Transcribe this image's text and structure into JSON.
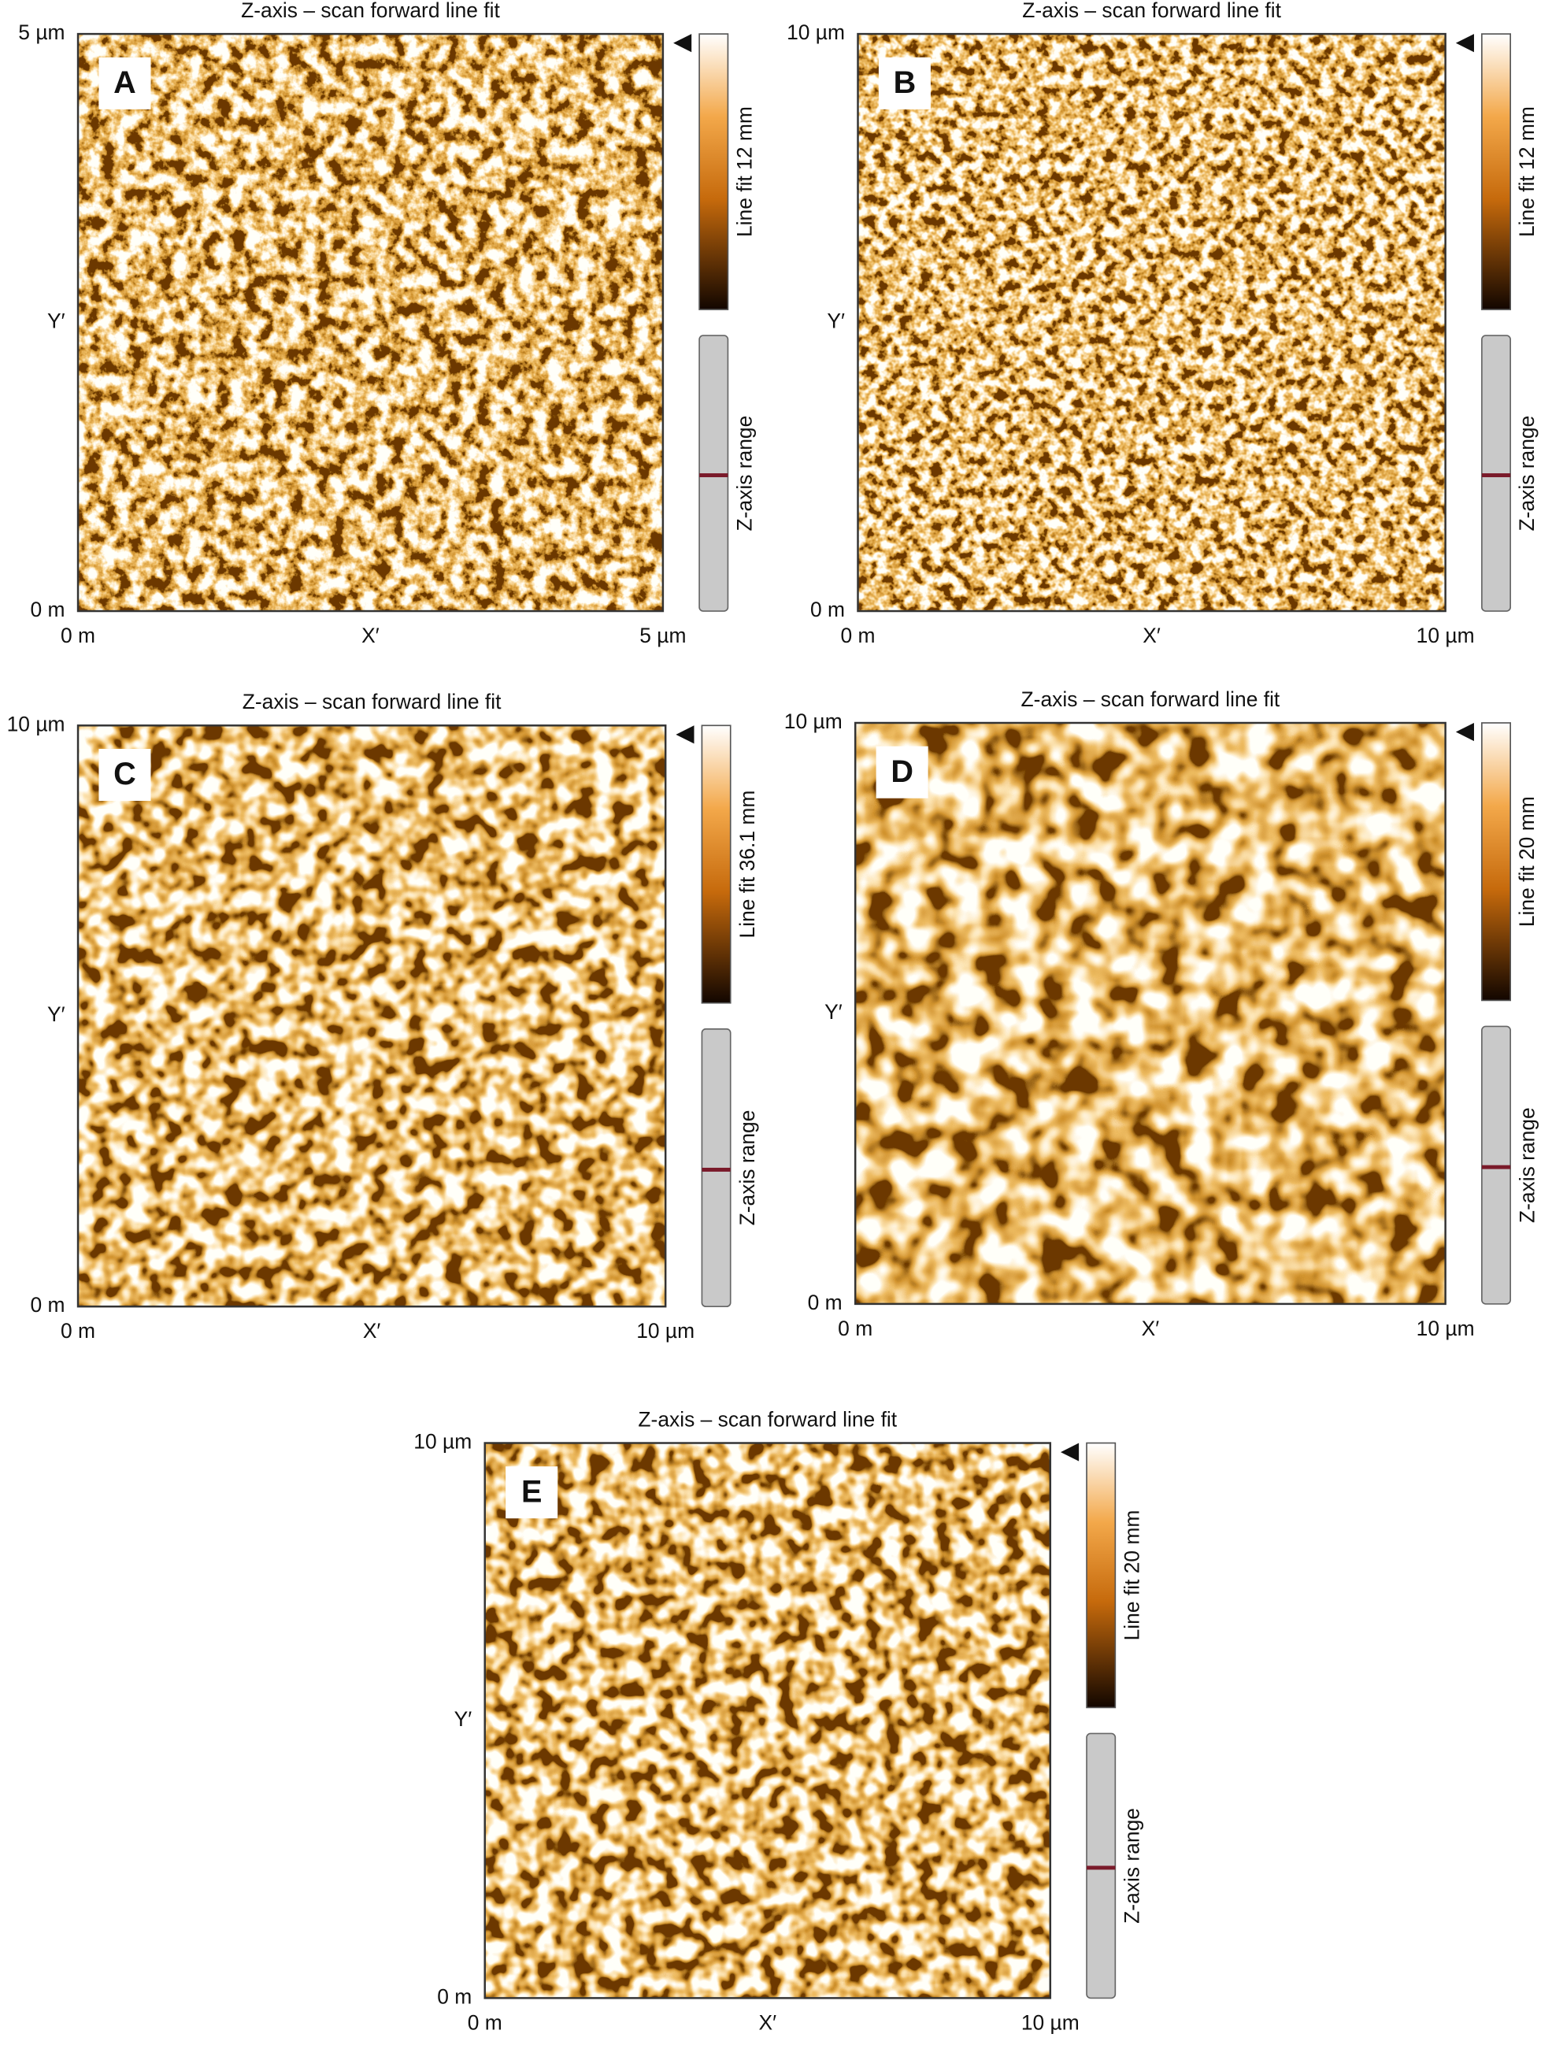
{
  "panels": [
    {
      "label": "A",
      "title": "Z-axis – scan forward line fit",
      "y_top": "5 µm",
      "y_mid": "Y′",
      "y_bottom": "0 m",
      "x_left": "0 m",
      "x_mid": "X′",
      "x_right": "5 µm",
      "colorbar_label": "Line fit 12 mm",
      "range_label": "Z-axis range"
    },
    {
      "label": "B",
      "title": "Z-axis – scan forward line fit",
      "y_top": "10 µm",
      "y_mid": "Y′",
      "y_bottom": "0 m",
      "x_left": "0 m",
      "x_mid": "X′",
      "x_right": "10 µm",
      "colorbar_label": "Line fit 12 mm",
      "range_label": "Z-axis range"
    },
    {
      "label": "C",
      "title": "Z-axis – scan forward line fit",
      "y_top": "10 µm",
      "y_mid": "Y′",
      "y_bottom": "0 m",
      "x_left": "0 m",
      "x_mid": "X′",
      "x_right": "10 µm",
      "colorbar_label": "Line fit 36.1 mm",
      "range_label": "Z-axis range"
    },
    {
      "label": "D",
      "title": "Z-axis – scan forward line fit",
      "y_top": "10 µm",
      "y_mid": "Y′",
      "y_bottom": "0 m",
      "x_left": "0 m",
      "x_mid": "X′",
      "x_right": "10 µm",
      "colorbar_label": "Line fit 20 mm",
      "range_label": "Z-axis range"
    },
    {
      "label": "E",
      "title": "Z-axis – scan forward line fit",
      "y_top": "10 µm",
      "y_mid": "Y′",
      "y_bottom": "0 m",
      "x_left": "0 m",
      "x_mid": "X′",
      "x_right": "10 µm",
      "colorbar_label": "Line fit 20 mm",
      "range_label": "Z-axis range"
    }
  ]
}
